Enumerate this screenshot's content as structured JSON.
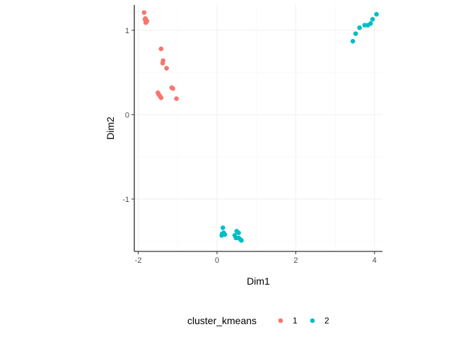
{
  "chart_data": {
    "type": "scatter",
    "xlabel": "Dim1",
    "ylabel": "Dim2",
    "xlim": [
      -2.1,
      4.2
    ],
    "ylim": [
      -1.62,
      1.3
    ],
    "x_ticks": [
      -2,
      0,
      2,
      4
    ],
    "y_ticks": [
      -1,
      0,
      1
    ],
    "x_tick_labels": [
      "-2",
      "0",
      "2",
      "4"
    ],
    "y_tick_labels": [
      "-1",
      "0",
      "1"
    ],
    "grid": true,
    "legend_position": "bottom",
    "legend_title": "cluster_kmeans",
    "series": [
      {
        "name": "1",
        "color": "#F8766D",
        "points": [
          [
            -1.85,
            1.21
          ],
          [
            -1.82,
            1.14
          ],
          [
            -1.8,
            1.12
          ],
          [
            -1.79,
            1.1
          ],
          [
            -1.81,
            1.09
          ],
          [
            -1.78,
            1.11
          ],
          [
            -1.83,
            1.13
          ],
          [
            -1.42,
            0.78
          ],
          [
            -1.37,
            0.64
          ],
          [
            -1.38,
            0.61
          ],
          [
            -1.28,
            0.55
          ],
          [
            -1.15,
            0.32
          ],
          [
            -1.12,
            0.31
          ],
          [
            -1.5,
            0.26
          ],
          [
            -1.48,
            0.24
          ],
          [
            -1.45,
            0.22
          ],
          [
            -1.42,
            0.2
          ],
          [
            -1.03,
            0.19
          ]
        ]
      },
      {
        "name": "2",
        "color": "#00BFC4",
        "points": [
          [
            4.05,
            1.19
          ],
          [
            3.95,
            1.13
          ],
          [
            3.9,
            1.08
          ],
          [
            3.83,
            1.06
          ],
          [
            3.75,
            1.06
          ],
          [
            3.62,
            1.03
          ],
          [
            3.52,
            0.96
          ],
          [
            3.45,
            0.87
          ],
          [
            0.15,
            -1.34
          ],
          [
            0.13,
            -1.41
          ],
          [
            0.12,
            -1.43
          ],
          [
            0.2,
            -1.42
          ],
          [
            0.17,
            -1.4
          ],
          [
            0.5,
            -1.38
          ],
          [
            0.55,
            -1.4
          ],
          [
            0.45,
            -1.43
          ],
          [
            0.48,
            -1.46
          ],
          [
            0.55,
            -1.46
          ],
          [
            0.6,
            -1.48
          ],
          [
            0.62,
            -1.49
          ]
        ]
      }
    ]
  }
}
